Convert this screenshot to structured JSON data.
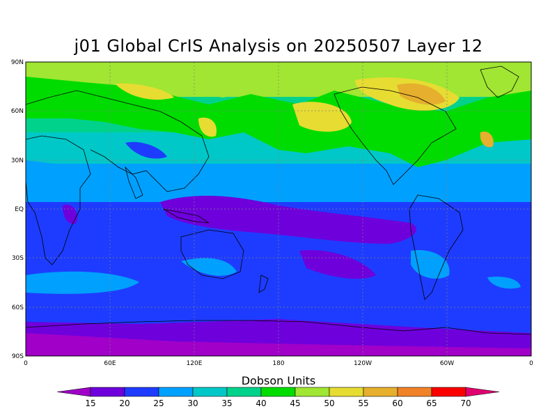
{
  "title": "j01 Global CrIS Analysis on 20250507 Layer 12",
  "units": "Dobson Units",
  "lat_ticks": [
    "90N",
    "60N",
    "30N",
    "EQ",
    "30S",
    "60S",
    "90S"
  ],
  "lon_ticks": [
    "0",
    "60E",
    "120E",
    "180",
    "120W",
    "60W",
    "0"
  ],
  "colorbar": {
    "levels": [
      15,
      20,
      25,
      30,
      35,
      40,
      45,
      50,
      55,
      60,
      65,
      70
    ],
    "colors": [
      "#a000c8",
      "#6e00dc",
      "#1e3cff",
      "#00a0ff",
      "#00c8c8",
      "#00d28c",
      "#00dc00",
      "#a0e632",
      "#e6dc32",
      "#e6af2d",
      "#f08228",
      "#fa0000",
      "#e00070"
    ]
  },
  "colors": {
    "background": "#ffffff",
    "grid": "#808080",
    "coast": "#000000"
  }
}
